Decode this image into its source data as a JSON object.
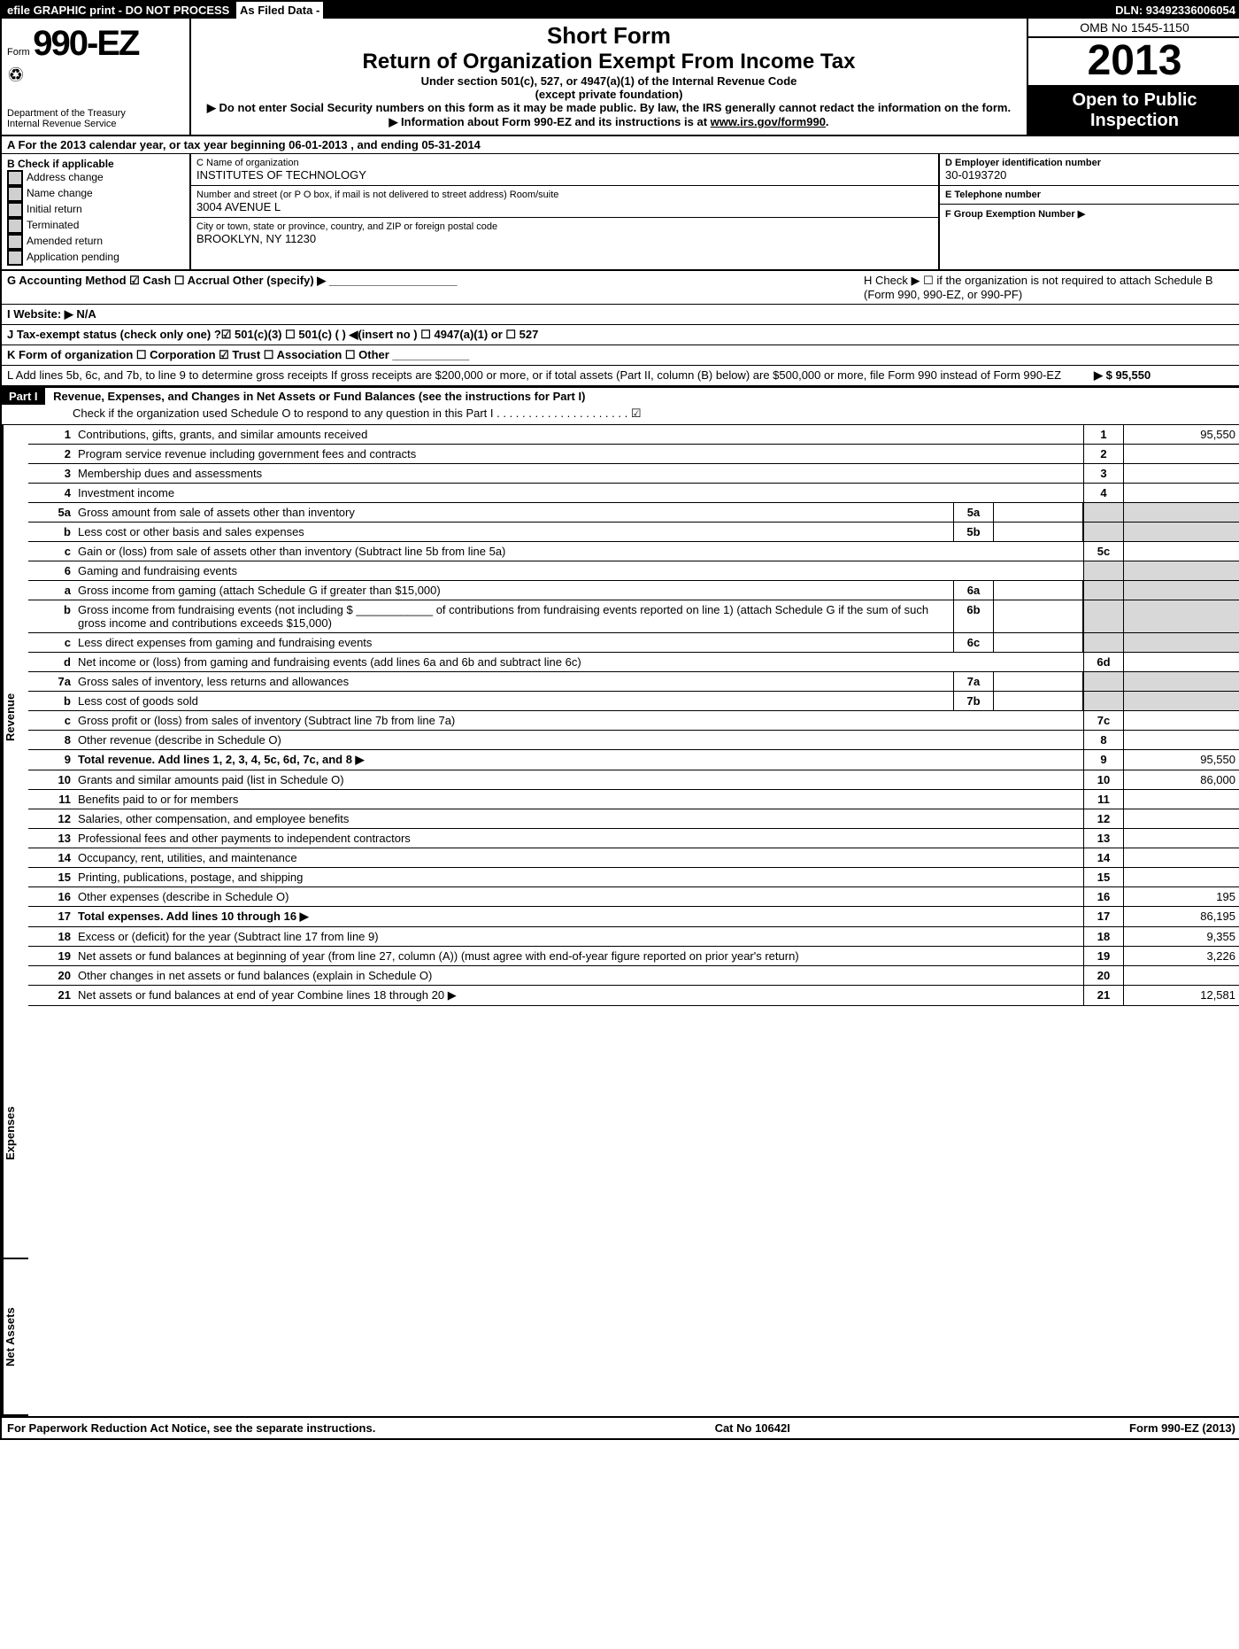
{
  "topbar": {
    "left": "efile GRAPHIC print - DO NOT PROCESS",
    "asfiled": "As Filed Data -",
    "dln": "DLN: 93492336006054"
  },
  "header": {
    "form_word": "Form",
    "form_number": "990-EZ",
    "dept1": "Department of the Treasury",
    "dept2": "Internal Revenue Service",
    "short": "Short Form",
    "title": "Return of Organization Exempt From Income Tax",
    "sub1": "Under section 501(c), 527, or 4947(a)(1) of the Internal Revenue Code",
    "sub2": "(except private foundation)",
    "note1": "▶ Do not enter Social Security numbers on this form as it may be made public. By law, the IRS generally cannot redact the information on the form.",
    "note2_pre": "▶ Information about Form 990-EZ and its instructions is at ",
    "note2_link": "www.irs.gov/form990",
    "omb": "OMB No 1545-1150",
    "year": "2013",
    "open1": "Open to Public",
    "open2": "Inspection"
  },
  "A": {
    "text": "A  For the 2013 calendar year, or tax year beginning 06-01-2013          , and ending 05-31-2014"
  },
  "B": {
    "header": "B  Check if applicable",
    "items": [
      "Address change",
      "Name change",
      "Initial return",
      "Terminated",
      "Amended return",
      "Application pending"
    ]
  },
  "C": {
    "label": "C Name of organization",
    "name": "INSTITUTES OF TECHNOLOGY",
    "street_label": "Number and street (or P O box, if mail is not delivered to street address) Room/suite",
    "street": "3004 AVENUE L",
    "city_label": "City or town, state or province, country, and ZIP or foreign postal code",
    "city": "BROOKLYN, NY  11230"
  },
  "D": {
    "label": "D Employer identification number",
    "value": "30-0193720"
  },
  "E": {
    "label": "E Telephone number",
    "value": ""
  },
  "F": {
    "label": "F Group Exemption Number    ▶",
    "value": ""
  },
  "G": "G Accounting Method    ☑ Cash   ☐ Accrual   Other (specify) ▶ ____________________",
  "H": "H  Check ▶ ☐  if the organization is not required to attach Schedule B (Form 990, 990-EZ, or 990-PF)",
  "I": "I Website: ▶  N/A",
  "J": "J Tax-exempt status (check only one) ?☑ 501(c)(3)  ☐ 501(c) (   ) ◀(insert no ) ☐ 4947(a)(1) or ☐ 527",
  "K": "K Form of organization   ☐ Corporation  ☑ Trust  ☐ Association  ☐ Other  ____________",
  "L": {
    "text": "L Add lines 5b, 6c, and 7b, to line 9 to determine gross receipts  If gross receipts are $200,000 or more, or if total assets (Part II, column (B) below) are $500,000 or more, file Form 990 instead of Form 990-EZ",
    "amount": "▶ $ 95,550"
  },
  "partI": {
    "label": "Part I",
    "title": "Revenue, Expenses, and Changes in Net Assets or Fund Balances (see the instructions for Part I)",
    "check": "Check if the organization used Schedule O to respond to any question in this Part I  .  .  .  .  .  .  .  .  .  .  .  .  .  .  .  .  .  .  .  .  . ☑"
  },
  "sections": {
    "revenue": "Revenue",
    "expenses": "Expenses",
    "netassets": "Net Assets"
  },
  "lines": [
    {
      "n": "1",
      "desc": "Contributions, gifts, grants, and similar amounts received",
      "rnum": "1",
      "rval": "95,550"
    },
    {
      "n": "2",
      "desc": "Program service revenue including government fees and contracts",
      "rnum": "2",
      "rval": ""
    },
    {
      "n": "3",
      "desc": "Membership dues and assessments",
      "rnum": "3",
      "rval": ""
    },
    {
      "n": "4",
      "desc": "Investment income",
      "rnum": "4",
      "rval": ""
    },
    {
      "n": "5a",
      "desc": "Gross amount from sale of assets other than inventory",
      "mid": "5a",
      "midval": "",
      "shadeR": true
    },
    {
      "n": "b",
      "desc": "Less  cost or other basis and sales expenses",
      "mid": "5b",
      "midval": "",
      "shadeR": true
    },
    {
      "n": "c",
      "desc": "Gain or (loss) from sale of assets other than inventory (Subtract line 5b from line 5a)",
      "rnum": "5c",
      "rval": ""
    },
    {
      "n": "6",
      "desc": "Gaming and fundraising events",
      "shadeR": true,
      "shadeMid": true
    },
    {
      "n": "a",
      "desc": "Gross income from gaming (attach Schedule G if greater than $15,000)",
      "mid": "6a",
      "midval": "",
      "shadeR": true
    },
    {
      "n": "b",
      "desc": "Gross income from fundraising events (not including $ ____________ of contributions from fundraising events reported on line 1) (attach Schedule G if the sum of such gross income and contributions exceeds $15,000)",
      "mid": "6b",
      "midval": "",
      "shadeR": true
    },
    {
      "n": "c",
      "desc": "Less  direct expenses from gaming and fundraising events",
      "mid": "6c",
      "midval": "",
      "shadeR": true
    },
    {
      "n": "d",
      "desc": "Net income or (loss) from gaming and fundraising events (add lines 6a and 6b and subtract line 6c)",
      "rnum": "6d",
      "rval": ""
    },
    {
      "n": "7a",
      "desc": "Gross sales of inventory, less returns and allowances",
      "mid": "7a",
      "midval": "",
      "shadeR": true
    },
    {
      "n": "b",
      "desc": "Less  cost of goods sold",
      "mid": "7b",
      "midval": "",
      "shadeR": true
    },
    {
      "n": "c",
      "desc": "Gross profit or (loss) from sales of inventory (Subtract line 7b from line 7a)",
      "rnum": "7c",
      "rval": ""
    },
    {
      "n": "8",
      "desc": "Other revenue (describe in Schedule O)",
      "rnum": "8",
      "rval": ""
    },
    {
      "n": "9",
      "desc": "Total revenue. Add lines 1, 2, 3, 4, 5c, 6d, 7c, and 8      ▶",
      "bold": true,
      "rnum": "9",
      "rval": "95,550"
    },
    {
      "n": "10",
      "desc": "Grants and similar amounts paid (list in Schedule O)",
      "rnum": "10",
      "rval": "86,000"
    },
    {
      "n": "11",
      "desc": "Benefits paid to or for members",
      "rnum": "11",
      "rval": ""
    },
    {
      "n": "12",
      "desc": "Salaries, other compensation, and employee benefits",
      "rnum": "12",
      "rval": ""
    },
    {
      "n": "13",
      "desc": "Professional fees and other payments to independent contractors",
      "rnum": "13",
      "rval": ""
    },
    {
      "n": "14",
      "desc": "Occupancy, rent, utilities, and maintenance",
      "rnum": "14",
      "rval": ""
    },
    {
      "n": "15",
      "desc": "Printing, publications, postage, and shipping",
      "rnum": "15",
      "rval": ""
    },
    {
      "n": "16",
      "desc": "Other expenses (describe in Schedule O)",
      "rnum": "16",
      "rval": "195"
    },
    {
      "n": "17",
      "desc": "Total expenses. Add lines 10 through 16      ▶",
      "bold": true,
      "rnum": "17",
      "rval": "86,195"
    },
    {
      "n": "18",
      "desc": "Excess or (deficit) for the year (Subtract line 17 from line 9)",
      "rnum": "18",
      "rval": "9,355"
    },
    {
      "n": "19",
      "desc": "Net assets or fund balances at beginning of year (from line 27, column (A)) (must agree with end-of-year figure reported on prior year's return)",
      "rnum": "19",
      "rval": "3,226"
    },
    {
      "n": "20",
      "desc": "Other changes in net assets or fund balances (explain in Schedule O)",
      "rnum": "20",
      "rval": ""
    },
    {
      "n": "21",
      "desc": "Net assets or fund balances at end of year  Combine lines 18 through 20      ▶",
      "rnum": "21",
      "rval": "12,581"
    }
  ],
  "footer": {
    "left": "For Paperwork Reduction Act Notice, see the separate instructions.",
    "mid": "Cat No 10642I",
    "right": "Form 990-EZ (2013)"
  }
}
